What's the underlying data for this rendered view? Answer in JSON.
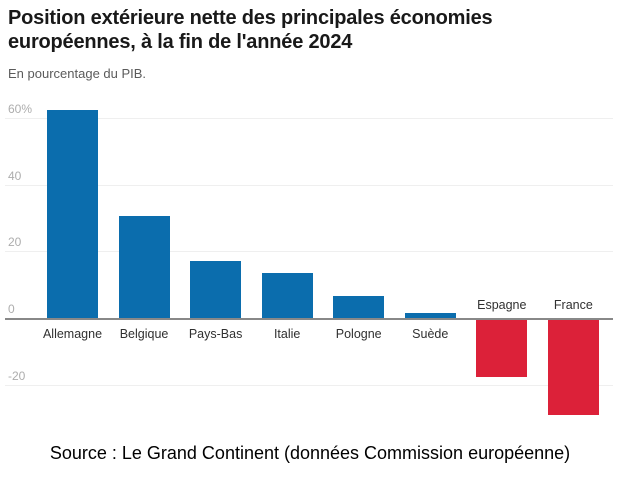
{
  "chart_data": {
    "type": "bar",
    "title": "Position extérieure nette des principales économies européennes, à la fin de l'année 2024",
    "subtitle": "En pourcentage du PIB.",
    "categories": [
      "Allemagne",
      "Belgique",
      "Pays-Bas",
      "Italie",
      "Pologne",
      "Suède",
      "Espagne",
      "France"
    ],
    "values": [
      62.5,
      30.5,
      17,
      13.5,
      6.5,
      1.5,
      -17,
      -28.5
    ],
    "xlabel": "",
    "ylabel": "En pourcentage du PIB",
    "ylim": [
      -30,
      64
    ],
    "yticks": [
      {
        "value": 60,
        "label": "60%"
      },
      {
        "value": 40,
        "label": "40"
      },
      {
        "value": 20,
        "label": "20"
      },
      {
        "value": 0,
        "label": "0"
      },
      {
        "value": -20,
        "label": "-20"
      }
    ],
    "grid": "horizontal",
    "legend": "none",
    "colors": {
      "positive_bar": "#0b6dad",
      "negative_bar": "#dc2139",
      "gridline": "#efefef",
      "zero_axis": "#888888",
      "tick_label": "#adadad",
      "category_label": "#303030"
    }
  },
  "footer": {
    "source": "Source : Le Grand Continent (données Commission européenne)"
  }
}
